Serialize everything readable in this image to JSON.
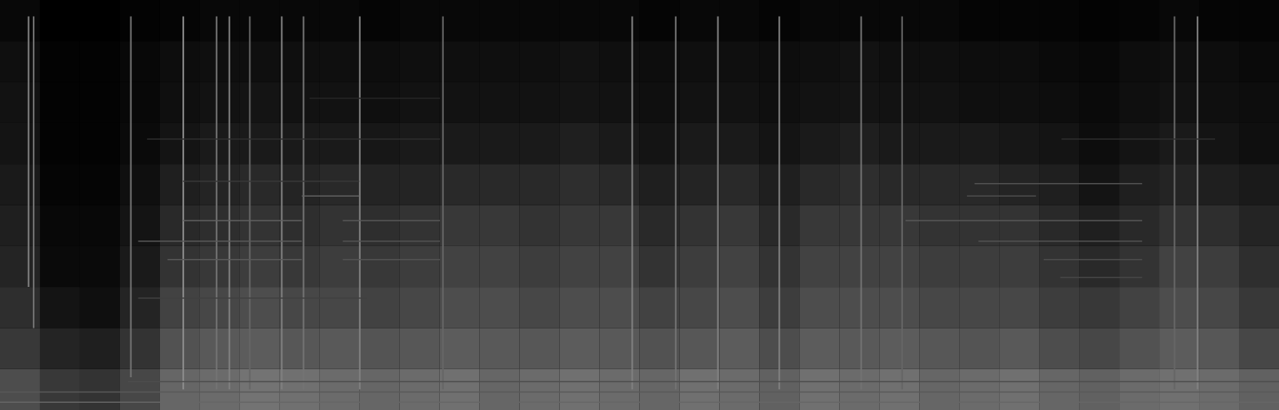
{
  "chart_data": {
    "type": "heatmap",
    "xlim": [
      0,
      100
    ],
    "ylim": [
      0,
      100
    ],
    "zlim": [
      0,
      100
    ],
    "tick_labels": false,
    "grid": false,
    "cells": [
      [
        30,
        22,
        20,
        28,
        40,
        42,
        45,
        44,
        42,
        40,
        42,
        44,
        40,
        42,
        44,
        42,
        40,
        44,
        42,
        38,
        44,
        42,
        44,
        40,
        42,
        44,
        40,
        38,
        42,
        44,
        42,
        38
      ],
      [
        22,
        14,
        12,
        20,
        32,
        35,
        36,
        34,
        35,
        33,
        34,
        36,
        35,
        34,
        36,
        35,
        32,
        34,
        36,
        30,
        36,
        35,
        36,
        34,
        33,
        35,
        30,
        28,
        32,
        36,
        34,
        28
      ],
      [
        18,
        8,
        6,
        14,
        26,
        28,
        30,
        28,
        28,
        26,
        28,
        30,
        30,
        28,
        30,
        30,
        26,
        28,
        30,
        24,
        30,
        30,
        30,
        28,
        28,
        28,
        24,
        22,
        26,
        30,
        28,
        22
      ],
      [
        14,
        4,
        4,
        10,
        20,
        22,
        24,
        22,
        24,
        22,
        24,
        26,
        26,
        24,
        26,
        26,
        20,
        24,
        26,
        20,
        26,
        26,
        26,
        24,
        24,
        24,
        20,
        16,
        20,
        26,
        24,
        18
      ],
      [
        12,
        3,
        3,
        8,
        16,
        18,
        20,
        18,
        20,
        18,
        20,
        22,
        22,
        20,
        22,
        22,
        16,
        20,
        22,
        16,
        22,
        22,
        22,
        20,
        20,
        20,
        16,
        12,
        16,
        20,
        18,
        14
      ],
      [
        10,
        2,
        2,
        6,
        12,
        14,
        16,
        14,
        16,
        14,
        14,
        16,
        16,
        16,
        18,
        16,
        12,
        14,
        16,
        12,
        16,
        18,
        16,
        16,
        16,
        14,
        12,
        8,
        12,
        14,
        12,
        10
      ],
      [
        8,
        1,
        1,
        4,
        8,
        10,
        10,
        10,
        10,
        9,
        10,
        10,
        10,
        10,
        12,
        10,
        8,
        10,
        10,
        8,
        10,
        12,
        10,
        10,
        10,
        9,
        8,
        5,
        8,
        10,
        8,
        6
      ],
      [
        7,
        1,
        1,
        3,
        6,
        7,
        8,
        7,
        7,
        6,
        7,
        7,
        7,
        7,
        8,
        7,
        6,
        7,
        7,
        6,
        7,
        8,
        7,
        7,
        6,
        6,
        5,
        4,
        6,
        7,
        6,
        5
      ],
      [
        6,
        1,
        1,
        3,
        5,
        6,
        6,
        6,
        6,
        5,
        6,
        6,
        6,
        6,
        7,
        6,
        5,
        6,
        6,
        5,
        6,
        7,
        6,
        6,
        5,
        5,
        4,
        3,
        5,
        6,
        5,
        4
      ],
      [
        3,
        0,
        0,
        1,
        2,
        3,
        3,
        3,
        3,
        2,
        3,
        3,
        3,
        3,
        3,
        3,
        2,
        3,
        3,
        2,
        3,
        3,
        3,
        3,
        2,
        2,
        2,
        1,
        2,
        3,
        2,
        2
      ]
    ],
    "transients": [
      {
        "x": 2.2,
        "y1": 30,
        "y2": 96,
        "value": 50
      },
      {
        "x": 2.6,
        "y1": 20,
        "y2": 96,
        "value": 45
      },
      {
        "x": 10.2,
        "y1": 8,
        "y2": 96,
        "value": 45
      },
      {
        "x": 14.3,
        "y1": 5,
        "y2": 96,
        "value": 55
      },
      {
        "x": 16.9,
        "y1": 5,
        "y2": 96,
        "value": 45
      },
      {
        "x": 17.9,
        "y1": 5,
        "y2": 96,
        "value": 50
      },
      {
        "x": 19.5,
        "y1": 5,
        "y2": 96,
        "value": 40
      },
      {
        "x": 22.0,
        "y1": 5,
        "y2": 96,
        "value": 50
      },
      {
        "x": 23.7,
        "y1": 5,
        "y2": 96,
        "value": 45
      },
      {
        "x": 28.1,
        "y1": 5,
        "y2": 96,
        "value": 50
      },
      {
        "x": 34.6,
        "y1": 5,
        "y2": 96,
        "value": 40
      },
      {
        "x": 49.4,
        "y1": 5,
        "y2": 96,
        "value": 50
      },
      {
        "x": 52.8,
        "y1": 5,
        "y2": 96,
        "value": 45
      },
      {
        "x": 56.1,
        "y1": 5,
        "y2": 96,
        "value": 50
      },
      {
        "x": 60.9,
        "y1": 5,
        "y2": 96,
        "value": 50
      },
      {
        "x": 67.3,
        "y1": 5,
        "y2": 96,
        "value": 45
      },
      {
        "x": 70.5,
        "y1": 5,
        "y2": 96,
        "value": 40
      },
      {
        "x": 91.8,
        "y1": 5,
        "y2": 96,
        "value": 40
      },
      {
        "x": 93.6,
        "y1": 5,
        "y2": 96,
        "value": 50
      }
    ],
    "tones": [
      {
        "x1": 14.3,
        "x2": 23.6,
        "y": 46.3,
        "value": 38
      },
      {
        "x1": 10.8,
        "x2": 23.6,
        "y": 41.3,
        "value": 35
      },
      {
        "x1": 13.1,
        "x2": 23.6,
        "y": 36.8,
        "value": 35
      },
      {
        "x1": 23.6,
        "x2": 28.1,
        "y": 52.3,
        "value": 38
      },
      {
        "x1": 26.8,
        "x2": 34.4,
        "y": 46.3,
        "value": 35
      },
      {
        "x1": 26.8,
        "x2": 34.4,
        "y": 41.3,
        "value": 32
      },
      {
        "x1": 26.8,
        "x2": 34.4,
        "y": 36.8,
        "value": 32
      },
      {
        "x1": 14.3,
        "x2": 28.1,
        "y": 55.9,
        "value": 22
      },
      {
        "x1": 11.5,
        "x2": 34.4,
        "y": 66.2,
        "value": 18
      },
      {
        "x1": 24.2,
        "x2": 34.4,
        "y": 76.1,
        "value": 15
      },
      {
        "x1": 10.8,
        "x2": 28.7,
        "y": 27.4,
        "value": 25
      },
      {
        "x1": 76.2,
        "x2": 89.3,
        "y": 55.3,
        "value": 32
      },
      {
        "x1": 70.8,
        "x2": 89.3,
        "y": 46.3,
        "value": 35
      },
      {
        "x1": 76.5,
        "x2": 89.3,
        "y": 41.3,
        "value": 32
      },
      {
        "x1": 81.6,
        "x2": 89.3,
        "y": 36.8,
        "value": 30
      },
      {
        "x1": 82.9,
        "x2": 89.3,
        "y": 32.4,
        "value": 28
      },
      {
        "x1": 75.6,
        "x2": 81.0,
        "y": 52.3,
        "value": 30
      },
      {
        "x1": 83.0,
        "x2": 95.0,
        "y": 66.2,
        "value": 18
      },
      {
        "x1": 0,
        "x2": 100,
        "y": 2,
        "value": 40
      },
      {
        "x1": 0,
        "x2": 100,
        "y": 4.5,
        "value": 35
      },
      {
        "x1": 10,
        "x2": 100,
        "y": 7,
        "value": 30
      }
    ]
  }
}
